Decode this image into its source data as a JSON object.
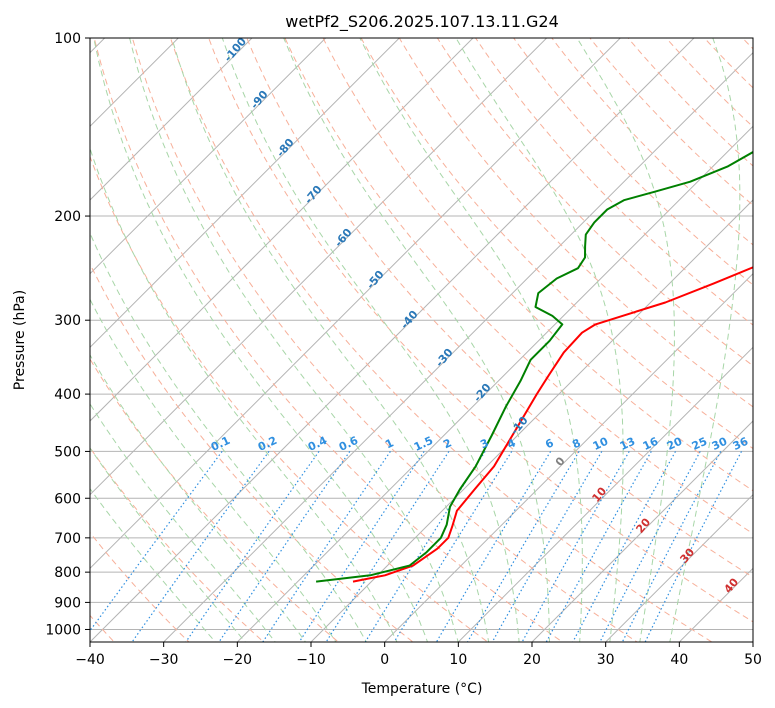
{
  "chart_data": {
    "type": "line",
    "title": "wetPf2_S206.2025.107.13.11.G24",
    "xlabel": "Temperature (°C)",
    "ylabel": "Pressure (hPa)",
    "xlim": [
      -40,
      50
    ],
    "ylim": [
      1050,
      100
    ],
    "y_scale": "log",
    "x_ticks": [
      -40,
      -30,
      -20,
      -10,
      0,
      10,
      20,
      30,
      40,
      50
    ],
    "y_ticks": [
      100,
      200,
      300,
      400,
      500,
      600,
      700,
      800,
      900,
      1000
    ],
    "grid": true,
    "skew_deg": 45,
    "series": [
      {
        "color": "#ff0000",
        "points": [
          [
            -12.5,
            830
          ],
          [
            -9,
            810
          ],
          [
            -6.5,
            780
          ],
          [
            -5.5,
            730
          ],
          [
            -5.5,
            700
          ],
          [
            -6.5,
            670
          ],
          [
            -8,
            630
          ],
          [
            -8.5,
            580
          ],
          [
            -9,
            530
          ],
          [
            -11,
            460
          ],
          [
            -13,
            400
          ],
          [
            -14,
            370
          ],
          [
            -15,
            340
          ],
          [
            -15.2,
            315
          ],
          [
            -14.5,
            305
          ],
          [
            -12,
            295
          ],
          [
            -8,
            280
          ],
          [
            -4,
            260
          ],
          [
            0,
            240
          ],
          [
            6,
            215
          ],
          [
            10,
            200
          ],
          [
            16,
            180
          ],
          [
            21,
            165
          ],
          [
            28,
            150
          ],
          [
            34,
            135
          ],
          [
            40,
            118
          ],
          [
            46,
            105
          ],
          [
            51,
            100
          ]
        ]
      },
      {
        "color": "#008000",
        "points": [
          [
            -17.5,
            830
          ],
          [
            -11,
            810
          ],
          [
            -7,
            780
          ],
          [
            -6.5,
            740
          ],
          [
            -6.5,
            700
          ],
          [
            -7.5,
            665
          ],
          [
            -9.5,
            620
          ],
          [
            -10.5,
            580
          ],
          [
            -11.5,
            530
          ],
          [
            -13.5,
            470
          ],
          [
            -15.5,
            420
          ],
          [
            -17,
            380
          ],
          [
            -18.5,
            350
          ],
          [
            -18.5,
            325
          ],
          [
            -19,
            305
          ],
          [
            -21.5,
            295
          ],
          [
            -25,
            285
          ],
          [
            -26.5,
            270
          ],
          [
            -26,
            255
          ],
          [
            -24.5,
            245
          ],
          [
            -25,
            235
          ],
          [
            -26.5,
            225
          ],
          [
            -28,
            215
          ],
          [
            -28.5,
            205
          ],
          [
            -28.5,
            195
          ],
          [
            -27.5,
            188
          ],
          [
            -24.5,
            182
          ],
          [
            -21,
            175
          ],
          [
            -18,
            165
          ],
          [
            -15.5,
            150
          ],
          [
            -12,
            135
          ],
          [
            -7,
            120
          ],
          [
            -2,
            108
          ],
          [
            2,
            100
          ]
        ]
      }
    ],
    "dry_adiabat_labels": [
      "-100",
      "-90",
      "-80",
      "-70",
      "-60",
      "-50",
      "-40",
      "-30",
      "-20",
      "-10",
      "0",
      "10",
      "20",
      "30",
      "40"
    ],
    "mixing_ratio_labels": [
      "0.1",
      "0.2",
      "0.4",
      "0.6",
      "1",
      "1.5",
      "2",
      "3",
      "4",
      "6",
      "8",
      "10",
      "13",
      "16",
      "20",
      "25",
      "30",
      "36"
    ],
    "colors": {
      "isotherm": "#b4b4b4",
      "isobar": "#b4b4b4",
      "dry_adiabat": "#f7b09a",
      "moist_adiabat": "#a8d6a8",
      "mixing_ratio": "#2f8fe0",
      "label_blue": "#2a78b8",
      "label_red": "#d03030",
      "label_gray": "#808080",
      "label_mixing": "#2f8fe0",
      "ice_line": "#d8c0a0"
    }
  }
}
